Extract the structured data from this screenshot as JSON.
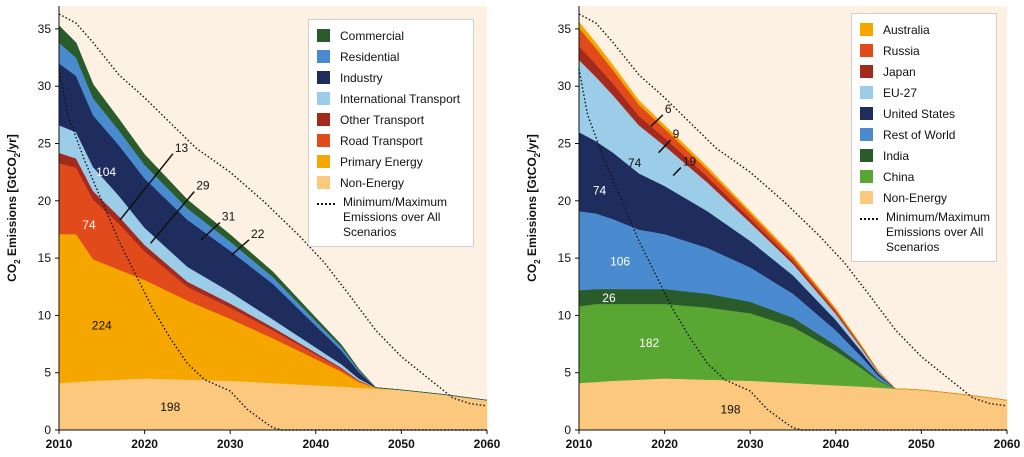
{
  "colors": {
    "panel_bg": "#fdf1e3",
    "Non-Energy": "#fbc87e",
    "Primary Energy": "#f5a700",
    "Road Transport": "#e14b1c",
    "Other Transport": "#a52a1e",
    "International Transport": "#9ccde8",
    "Industry": "#1f2d5e",
    "Residential": "#4a8bd0",
    "Commercial": "#2a5b2a",
    "China": "#5aa632",
    "India": "#2a5b2a",
    "Rest of World": "#4a8bd0",
    "United States": "#1f2d5e",
    "EU-27": "#9ccde8",
    "Japan": "#a52a1e",
    "Russia": "#e14b1c",
    "Australia": "#f5a700"
  },
  "chart_data": [
    {
      "type": "area",
      "ylabel_main": "CO",
      "ylabel_sub": "2",
      "ylabel_rest": " Emissions [GtCO",
      "ylabel_sub2": "2",
      "ylabel_end": "/yr]",
      "x_ticks": [
        "2010",
        "2020",
        "2030",
        "2040",
        "2050",
        "2060"
      ],
      "y_ticks": [
        "0",
        "5",
        "10",
        "15",
        "20",
        "25",
        "30",
        "35"
      ],
      "xlim": [
        2010,
        2060
      ],
      "ylim": [
        0,
        37
      ],
      "x": [
        2010,
        2012,
        2014,
        2017,
        2020,
        2025,
        2030,
        2035,
        2040,
        2043,
        2045,
        2047,
        2050,
        2055,
        2060
      ],
      "series": [
        {
          "name": "Non-Energy",
          "values": [
            4.1,
            4.2,
            4.3,
            4.4,
            4.5,
            4.4,
            4.3,
            4.1,
            3.9,
            3.8,
            3.7,
            3.6,
            3.5,
            3.1,
            2.6
          ]
        },
        {
          "name": "Primary Energy",
          "values": [
            13.0,
            12.9,
            10.6,
            9.6,
            8.6,
            6.9,
            5.4,
            3.9,
            2.3,
            1.3,
            0.5,
            0.1,
            0.0,
            0.0,
            0.0
          ]
        },
        {
          "name": "Road Transport",
          "values": [
            6.2,
            5.8,
            5.2,
            4.0,
            2.5,
            1.2,
            1.0,
            0.7,
            0.4,
            0.25,
            0.1,
            0.0,
            0.0,
            0.0,
            0.0
          ]
        },
        {
          "name": "Other Transport",
          "values": [
            0.9,
            0.8,
            0.75,
            0.65,
            0.55,
            0.45,
            0.35,
            0.25,
            0.15,
            0.08,
            0.05,
            0.0,
            0.0,
            0.0,
            0.0
          ]
        },
        {
          "name": "International Transport",
          "values": [
            2.4,
            2.3,
            2.1,
            1.8,
            1.5,
            1.3,
            1.0,
            0.7,
            0.45,
            0.3,
            0.15,
            0.0,
            0.0,
            0.0,
            0.0
          ]
        },
        {
          "name": "Industry",
          "values": [
            5.4,
            4.9,
            4.5,
            4.4,
            4.3,
            4.1,
            3.6,
            3.1,
            1.9,
            1.2,
            0.6,
            0.0,
            0.0,
            0.0,
            0.0
          ]
        },
        {
          "name": "Residential",
          "values": [
            1.8,
            1.6,
            1.5,
            1.3,
            1.2,
            1.0,
            0.8,
            0.6,
            0.4,
            0.3,
            0.15,
            0.0,
            0.0,
            0.0,
            0.0
          ]
        },
        {
          "name": "Commercial",
          "values": [
            1.5,
            1.3,
            1.2,
            1.0,
            0.9,
            0.75,
            0.6,
            0.45,
            0.3,
            0.2,
            0.1,
            0.0,
            0.0,
            0.0,
            0.0
          ]
        }
      ],
      "envelope": {
        "max": {
          "x": [
            2010,
            2012,
            2014,
            2017,
            2020,
            2023,
            2026,
            2030,
            2034,
            2038,
            2041,
            2044,
            2047,
            2050,
            2053,
            2056,
            2058,
            2060
          ],
          "y": [
            36.3,
            35.5,
            33.8,
            31.0,
            29.0,
            26.8,
            24.6,
            22.5,
            19.9,
            17.0,
            14.6,
            11.7,
            8.7,
            6.4,
            4.6,
            2.8,
            2.3,
            2.1
          ]
        },
        "min": {
          "x": [
            2010,
            2011,
            2013,
            2015,
            2017,
            2019,
            2021,
            2023,
            2025,
            2027,
            2030,
            2032,
            2034,
            2035,
            2036,
            2038,
            2060
          ],
          "y": [
            31.5,
            27.5,
            23.5,
            20.0,
            16.5,
            13.5,
            10.5,
            8.0,
            5.8,
            4.4,
            3.4,
            1.8,
            0.7,
            0.2,
            0.0,
            0.0,
            0.0
          ]
        }
      },
      "data_labels": [
        {
          "text": "104",
          "x": 2015.5,
          "y": 22.5,
          "color": "#ffffff"
        },
        {
          "text": "74",
          "x": 2013.5,
          "y": 17.9,
          "color": "#ffffff"
        },
        {
          "text": "224",
          "x": 2015,
          "y": 9.1,
          "color": "#111111"
        },
        {
          "text": "198",
          "x": 2023,
          "y": 2.0,
          "color": "#111111"
        }
      ],
      "callouts": [
        {
          "text": "13",
          "x1": 2017.1,
          "y1": 18.3,
          "x2": 2023.3,
          "y2": 24.1
        },
        {
          "text": "29",
          "x1": 2020.7,
          "y1": 16.3,
          "x2": 2025.8,
          "y2": 20.8
        },
        {
          "text": "31",
          "x1": 2026.6,
          "y1": 16.6,
          "x2": 2028.8,
          "y2": 18.1
        },
        {
          "text": "22",
          "x1": 2030.2,
          "y1": 15.3,
          "x2": 2032.2,
          "y2": 16.6
        }
      ],
      "legend_entries": [
        "Commercial",
        "Residential",
        "Industry",
        "International Transport",
        "Other Transport",
        "Road Transport",
        "Primary Energy",
        "Non-Energy"
      ],
      "envelope_label": "Minimum/Maximum Emissions over All Scenarios"
    },
    {
      "type": "area",
      "ylabel_main": "CO",
      "ylabel_sub": "2",
      "ylabel_rest": " Emissions [GtCO",
      "ylabel_sub2": "2",
      "ylabel_end": "/yr]",
      "x_ticks": [
        "2010",
        "2020",
        "2030",
        "2040",
        "2050",
        "2060"
      ],
      "y_ticks": [
        "0",
        "5",
        "10",
        "15",
        "20",
        "25",
        "30",
        "35"
      ],
      "xlim": [
        2010,
        2060
      ],
      "ylim": [
        0,
        37
      ],
      "x": [
        2010,
        2012,
        2014,
        2017,
        2020,
        2025,
        2030,
        2035,
        2040,
        2043,
        2045,
        2047,
        2050,
        2055,
        2060
      ],
      "series": [
        {
          "name": "Non-Energy",
          "values": [
            4.1,
            4.2,
            4.3,
            4.4,
            4.5,
            4.4,
            4.3,
            4.1,
            3.9,
            3.8,
            3.7,
            3.6,
            3.5,
            3.1,
            2.6
          ]
        },
        {
          "name": "China",
          "values": [
            6.7,
            6.8,
            6.7,
            6.6,
            6.5,
            6.3,
            5.9,
            4.9,
            3.0,
            1.6,
            0.6,
            0.0,
            0.0,
            0.0,
            0.0
          ]
        },
        {
          "name": "India",
          "values": [
            1.4,
            1.3,
            1.3,
            1.3,
            1.3,
            1.2,
            1.0,
            0.8,
            0.5,
            0.3,
            0.1,
            0.0,
            0.0,
            0.0,
            0.0
          ]
        },
        {
          "name": "Rest of World",
          "values": [
            6.9,
            6.6,
            6.1,
            5.2,
            4.8,
            4.0,
            3.0,
            2.1,
            1.3,
            0.7,
            0.3,
            0.0,
            0.0,
            0.0,
            0.0
          ]
        },
        {
          "name": "United States",
          "values": [
            6.9,
            6.3,
            5.8,
            4.9,
            4.2,
            3.2,
            2.3,
            1.6,
            0.9,
            0.45,
            0.2,
            0.0,
            0.0,
            0.0,
            0.0
          ]
        },
        {
          "name": "EU-27",
          "values": [
            6.3,
            5.6,
            5.0,
            4.2,
            3.5,
            2.5,
            1.6,
            1.0,
            0.55,
            0.3,
            0.1,
            0.0,
            0.0,
            0.0,
            0.0
          ]
        },
        {
          "name": "Japan",
          "values": [
            1.2,
            1.1,
            1.0,
            0.8,
            0.7,
            0.5,
            0.35,
            0.25,
            0.15,
            0.08,
            0.04,
            0.0,
            0.0,
            0.0,
            0.0
          ]
        },
        {
          "name": "Russia",
          "values": [
            1.6,
            1.4,
            1.2,
            1.0,
            0.8,
            0.6,
            0.45,
            0.3,
            0.2,
            0.1,
            0.05,
            0.0,
            0.0,
            0.0,
            0.0
          ]
        },
        {
          "name": "Australia",
          "values": [
            0.5,
            0.45,
            0.4,
            0.35,
            0.3,
            0.25,
            0.2,
            0.15,
            0.1,
            0.06,
            0.03,
            0.0,
            0.0,
            0.0,
            0.0
          ]
        }
      ],
      "envelope": {
        "max": {
          "x": [
            2010,
            2012,
            2014,
            2017,
            2020,
            2023,
            2026,
            2030,
            2034,
            2038,
            2041,
            2044,
            2047,
            2050,
            2053,
            2056,
            2058,
            2060
          ],
          "y": [
            36.3,
            35.5,
            33.8,
            31.0,
            29.0,
            26.8,
            24.6,
            22.5,
            19.9,
            17.0,
            14.6,
            11.7,
            8.7,
            6.4,
            4.6,
            2.8,
            2.3,
            2.1
          ]
        },
        "min": {
          "x": [
            2010,
            2011,
            2013,
            2015,
            2017,
            2019,
            2021,
            2023,
            2025,
            2027,
            2030,
            2032,
            2034,
            2035,
            2036,
            2038,
            2060
          ],
          "y": [
            31.5,
            27.5,
            23.5,
            20.0,
            16.5,
            13.5,
            10.5,
            8.0,
            5.8,
            4.4,
            3.4,
            1.8,
            0.7,
            0.2,
            0.0,
            0.0,
            0.0
          ]
        }
      },
      "data_labels": [
        {
          "text": "74",
          "x": 2016.5,
          "y": 23.3,
          "color": "#111111"
        },
        {
          "text": "74",
          "x": 2012.4,
          "y": 20.9,
          "color": "#ffffff"
        },
        {
          "text": "106",
          "x": 2014.8,
          "y": 14.7,
          "color": "#ffffff"
        },
        {
          "text": "26",
          "x": 2013.5,
          "y": 11.5,
          "color": "#ffffff"
        },
        {
          "text": "182",
          "x": 2018.2,
          "y": 7.6,
          "color": "#ffffff"
        },
        {
          "text": "198",
          "x": 2027.7,
          "y": 1.8,
          "color": "#111111"
        }
      ],
      "callouts": [
        {
          "text": "6",
          "x1": 2018.4,
          "y1": 26.5,
          "x2": 2019.8,
          "y2": 27.5
        },
        {
          "text": "9",
          "x1": 2019.3,
          "y1": 24.2,
          "x2": 2020.7,
          "y2": 25.3
        },
        {
          "text": "19",
          "x1": 2021.0,
          "y1": 22.2,
          "x2": 2021.9,
          "y2": 22.9
        }
      ],
      "legend_entries": [
        "Australia",
        "Russia",
        "Japan",
        "EU-27",
        "United States",
        "Rest of World",
        "India",
        "China",
        "Non-Energy"
      ],
      "envelope_label": "Minimum/Maximum Emissions over All Scenarios"
    }
  ]
}
